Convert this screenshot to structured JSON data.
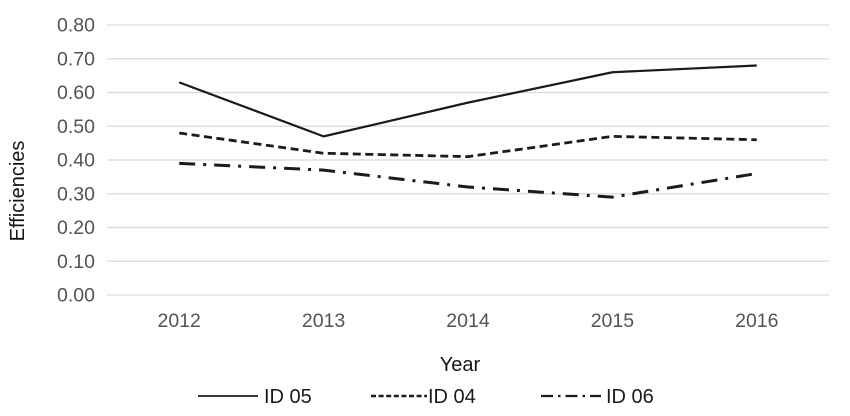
{
  "chart_data": {
    "type": "line",
    "title": "",
    "xlabel": "Year",
    "ylabel": "Efficiencies",
    "categories": [
      "2012",
      "2013",
      "2014",
      "2015",
      "2016"
    ],
    "series": [
      {
        "name": "ID 05",
        "style": "solid",
        "values": [
          0.63,
          0.47,
          0.57,
          0.66,
          0.68
        ]
      },
      {
        "name": "ID 04",
        "style": "dashed",
        "values": [
          0.48,
          0.42,
          0.41,
          0.47,
          0.46
        ]
      },
      {
        "name": "ID 06",
        "style": "dashdot",
        "values": [
          0.39,
          0.37,
          0.32,
          0.29,
          0.36
        ]
      }
    ],
    "ylim": [
      0.0,
      0.8
    ],
    "y_ticks": [
      "0.00",
      "0.10",
      "0.20",
      "0.30",
      "0.40",
      "0.50",
      "0.60",
      "0.70",
      "0.80"
    ],
    "grid": true,
    "legend_position": "bottom"
  },
  "colors": {
    "line": "#1b1b1b",
    "grid": "#d9d9d9",
    "tick_label": "#575150",
    "axis_title": "#151515"
  }
}
